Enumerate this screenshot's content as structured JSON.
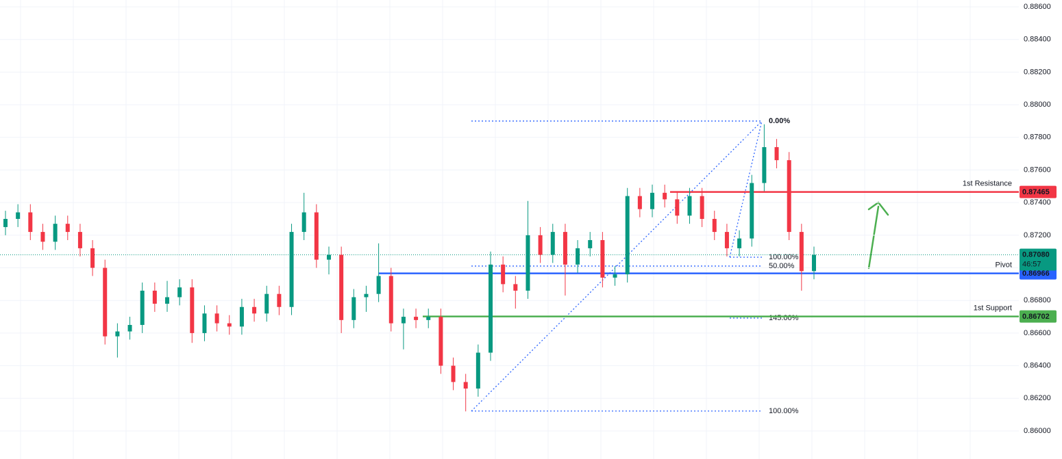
{
  "chart_data": {
    "type": "candlestick",
    "ylim": [
      0.85828,
      0.88642
    ],
    "yticks": [
      {
        "value": 0.86,
        "label": "0.86000"
      },
      {
        "value": 0.862,
        "label": "0.86200"
      },
      {
        "value": 0.864,
        "label": "0.86400"
      },
      {
        "value": 0.866,
        "label": "0.86600"
      },
      {
        "value": 0.868,
        "label": "0.86800"
      },
      {
        "value": 0.87,
        "label": "0.87000"
      },
      {
        "value": 0.872,
        "label": "0.87200"
      },
      {
        "value": 0.874,
        "label": "0.87400"
      },
      {
        "value": 0.876,
        "label": "0.87600"
      },
      {
        "value": 0.878,
        "label": "0.87800"
      },
      {
        "value": 0.88,
        "label": "0.88000"
      },
      {
        "value": 0.882,
        "label": "0.88200"
      },
      {
        "value": 0.884,
        "label": "0.88400"
      },
      {
        "value": 0.886,
        "label": "0.88600"
      }
    ],
    "grid": true,
    "up_color": "#089981",
    "down_color": "#f23645",
    "open": [
      0.8725,
      0.873,
      0.8734,
      0.8722,
      0.8716,
      0.8727,
      0.8722,
      0.8712,
      0.87,
      0.8658,
      0.8661,
      0.8665,
      0.8686,
      0.8678,
      0.8682,
      0.8688,
      0.866,
      0.8672,
      0.8666,
      0.8664,
      0.8676,
      0.8672,
      0.8684,
      0.8676,
      0.8722,
      0.8734,
      0.8705,
      0.8708,
      0.8668,
      0.8682,
      0.8684,
      0.8695,
      0.8666,
      0.867,
      0.8668,
      0.867,
      0.864,
      0.863,
      0.8626,
      0.8648,
      0.8702,
      0.869,
      0.8686,
      0.872,
      0.8708,
      0.8722,
      0.8702,
      0.8712,
      0.8717,
      0.8694,
      0.8696,
      0.8744,
      0.8736,
      0.8746,
      0.8742,
      0.8732,
      0.8744,
      0.873,
      0.8722,
      0.8712,
      0.8718,
      0.8752,
      0.8774,
      0.8766,
      0.8722,
      0.8698
    ],
    "high": [
      0.8735,
      0.8739,
      0.8739,
      0.8727,
      0.8732,
      0.8732,
      0.8727,
      0.8717,
      0.8705,
      0.8666,
      0.867,
      0.8691,
      0.8691,
      0.8692,
      0.8693,
      0.8693,
      0.8677,
      0.8677,
      0.8671,
      0.8681,
      0.8681,
      0.8689,
      0.8689,
      0.8727,
      0.8746,
      0.8739,
      0.8713,
      0.8713,
      0.8687,
      0.8689,
      0.8715,
      0.87,
      0.8675,
      0.8675,
      0.8675,
      0.8675,
      0.8645,
      0.8635,
      0.8653,
      0.871,
      0.8707,
      0.8695,
      0.8741,
      0.8725,
      0.8727,
      0.8727,
      0.8717,
      0.8722,
      0.8722,
      0.8701,
      0.8749,
      0.8749,
      0.8751,
      0.8751,
      0.8747,
      0.8749,
      0.8749,
      0.8735,
      0.8727,
      0.8723,
      0.8757,
      0.8788,
      0.8779,
      0.8771,
      0.8727,
      0.8713
    ],
    "low": [
      0.872,
      0.8725,
      0.8717,
      0.8711,
      0.8711,
      0.8717,
      0.8707,
      0.8695,
      0.8653,
      0.8645,
      0.8656,
      0.866,
      0.8673,
      0.8673,
      0.8677,
      0.8654,
      0.8655,
      0.8661,
      0.8659,
      0.8659,
      0.8667,
      0.8667,
      0.8671,
      0.8671,
      0.8717,
      0.87,
      0.8696,
      0.866,
      0.8663,
      0.8673,
      0.8679,
      0.8661,
      0.865,
      0.8663,
      0.8663,
      0.8635,
      0.8625,
      0.8612,
      0.8621,
      0.8643,
      0.8685,
      0.8675,
      0.8681,
      0.8703,
      0.8703,
      0.8683,
      0.8697,
      0.8707,
      0.8688,
      0.8689,
      0.8691,
      0.8731,
      0.8731,
      0.8737,
      0.8727,
      0.8727,
      0.8725,
      0.8717,
      0.8707,
      0.8707,
      0.8713,
      0.8747,
      0.8761,
      0.8717,
      0.8686,
      0.8693
    ],
    "close": [
      0.873,
      0.8734,
      0.8722,
      0.8716,
      0.8727,
      0.8722,
      0.8712,
      0.87,
      0.8658,
      0.8661,
      0.8665,
      0.8686,
      0.8678,
      0.8682,
      0.8688,
      0.866,
      0.8672,
      0.8666,
      0.8664,
      0.8676,
      0.8672,
      0.8684,
      0.8676,
      0.8722,
      0.8734,
      0.8705,
      0.8708,
      0.8668,
      0.8682,
      0.8684,
      0.8695,
      0.8666,
      0.867,
      0.8668,
      0.867,
      0.864,
      0.863,
      0.8626,
      0.8648,
      0.8702,
      0.869,
      0.8686,
      0.872,
      0.8708,
      0.8722,
      0.8702,
      0.8712,
      0.8717,
      0.8694,
      0.8696,
      0.8744,
      0.8736,
      0.8746,
      0.8742,
      0.8732,
      0.8744,
      0.873,
      0.8722,
      0.8712,
      0.8718,
      0.8752,
      0.8774,
      0.8766,
      0.8722,
      0.8698,
      0.8708
    ],
    "levels": [
      {
        "name": "1st Resistance",
        "value": 0.87465,
        "color": "#f23645"
      },
      {
        "name": "Pivot",
        "value": 0.86966,
        "color": "#2962ff"
      },
      {
        "name": "1st Support",
        "value": 0.86702,
        "color": "#4caf50"
      }
    ],
    "current_price": {
      "value": 0.8708,
      "label": "0.87080",
      "countdown": "46:57",
      "color": "#089981"
    },
    "fib_levels": [
      {
        "label": "0.00%",
        "value": 0.879
      },
      {
        "label": "100.00%",
        "value": 0.86122
      },
      {
        "label": "50.00%",
        "value": 0.87011
      },
      {
        "label": "100.00%",
        "value": 0.87065
      },
      {
        "label": "145.00%",
        "value": 0.86692
      }
    ]
  }
}
